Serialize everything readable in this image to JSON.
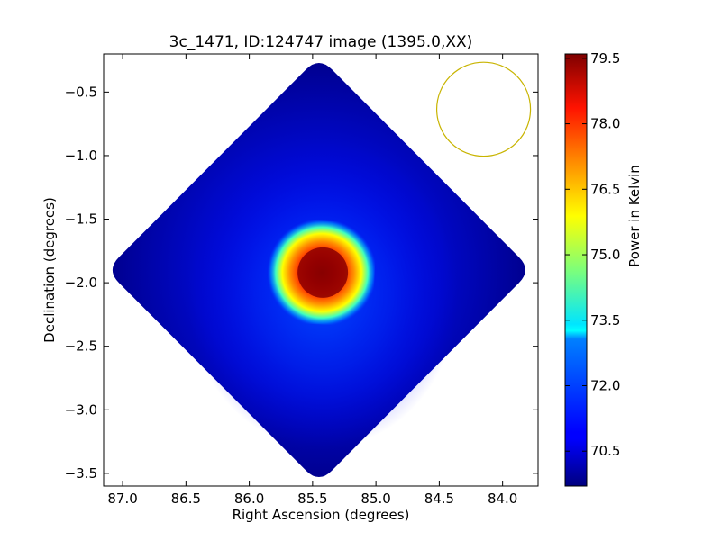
{
  "chart_data": {
    "type": "heatmap",
    "title": "3c_1471, ID:124747 image (1395.0,XX)",
    "xlabel": "Right Ascension (degrees)",
    "ylabel": "Declination (degrees)",
    "xlim": [
      87.15,
      83.72
    ],
    "ylim": [
      -3.6,
      -0.2
    ],
    "x_inverted": true,
    "xticks": [
      {
        "value": 87.0,
        "label": "87.0"
      },
      {
        "value": 86.5,
        "label": "86.5"
      },
      {
        "value": 86.0,
        "label": "86.0"
      },
      {
        "value": 85.5,
        "label": "85.5"
      },
      {
        "value": 85.0,
        "label": "85.0"
      },
      {
        "value": 84.5,
        "label": "84.5"
      },
      {
        "value": 84.0,
        "label": "84.0"
      }
    ],
    "yticks": [
      {
        "value": -0.5,
        "label": "−0.5"
      },
      {
        "value": -1.0,
        "label": "−1.0"
      },
      {
        "value": -1.5,
        "label": "−1.5"
      },
      {
        "value": -2.0,
        "label": "−2.0"
      },
      {
        "value": -2.5,
        "label": "−2.5"
      },
      {
        "value": -3.0,
        "label": "−3.0"
      },
      {
        "value": -3.5,
        "label": "−3.5"
      }
    ],
    "image": {
      "shape": "diamond",
      "center_ra": 85.45,
      "center_dec": -1.9,
      "half_extent_ra": 1.68,
      "half_extent_dec": 1.68,
      "background_value": 70.0,
      "peak_value": 79.8,
      "peak_ra": 85.42,
      "peak_dec": -1.92
    },
    "beam": {
      "center_ra": 84.15,
      "center_dec": -0.635,
      "radius_ra": 0.37,
      "radius_dec": 0.37,
      "color": "#c8b400"
    },
    "colorbar": {
      "label": "Power in Kelvin",
      "colormap": "jet",
      "min": 69.7,
      "max": 79.6,
      "ticks": [
        {
          "value": 70.5,
          "label": "70.5"
        },
        {
          "value": 72.0,
          "label": "72.0"
        },
        {
          "value": 73.5,
          "label": "73.5"
        },
        {
          "value": 75.0,
          "label": "75.0"
        },
        {
          "value": 76.5,
          "label": "76.5"
        },
        {
          "value": 78.0,
          "label": "78.0"
        },
        {
          "value": 79.5,
          "label": "79.5"
        }
      ]
    },
    "grid": false
  }
}
